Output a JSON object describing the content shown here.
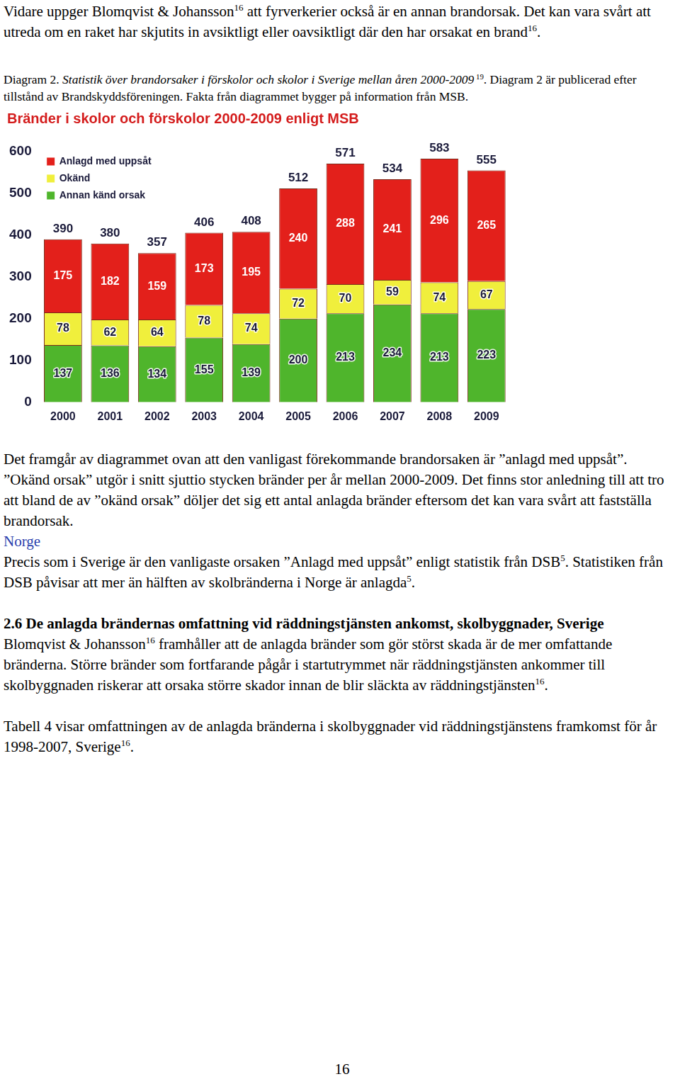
{
  "page": {
    "before": [
      {
        "style": "body",
        "runs": [
          "Vidare uppger Blomqvist & Johansson",
          {
            "text": "16",
            "format": "sup"
          },
          " att fyrverkerier också är en annan brandorsak. Det kan vara svårt att utreda om en raket har skjutits in avsiktligt eller oavsiktligt där den har orsakat en brand",
          {
            "text": "16",
            "format": "sup"
          },
          "."
        ]
      },
      {
        "style": "caption",
        "runs": [
          "Diagram 2. ",
          {
            "text": "Statistik över brandorsaker i förskolor och skolor i Sverige mellan åren 2000-2009",
            "format": "italic"
          },
          {
            "text": " 19",
            "format": "sup"
          },
          ". Diagram 2 är publicerad efter tillstånd av Brandskyddsföreningen. Fakta från diagrammet bygger på information från MSB."
        ]
      }
    ],
    "after": [
      {
        "style": "body",
        "runs": [
          "Det framgår av diagrammet ovan att den vanligast förekommande brandorsaken är ”anlagd med uppsåt”. ”Okänd orsak” utgör i snitt sjuttio stycken bränder per år mellan 2000-2009. Det finns stor anledning till att tro att bland de av ”okänd orsak” döljer det sig ett antal anlagda bränder eftersom det kan vara svårt att fastställa brandorsak."
        ]
      },
      {
        "style": "heading",
        "runs": [
          "Norge"
        ]
      },
      {
        "style": "body",
        "runs": [
          "Precis som i Sverige är den vanligaste orsaken ”Anlagd med uppsåt” enligt statistik från DSB",
          {
            "text": "5",
            "format": "sup"
          },
          ". Statistiken från DSB påvisar att mer än hälften av skolbränderna i Norge är anlagda",
          {
            "text": "5",
            "format": "sup"
          },
          "."
        ]
      },
      {
        "style": "subheading",
        "runs": [
          "2.6 De anlagda brändernas omfattning vid räddningstjänsten ankomst, skolbyggnader, Sverige"
        ]
      },
      {
        "style": "body",
        "runs": [
          "Blomqvist & Johansson",
          {
            "text": "16",
            "format": "sup"
          },
          " framhåller att de anlagda bränder som gör störst skada är de mer omfattande bränderna. Större bränder som fortfarande pågår i startutrymmet när räddningstjänsten ankommer till skolbyggnaden riskerar att orsaka större skador innan de blir släckta av räddningstjänsten",
          {
            "text": "16",
            "format": "sup"
          },
          "."
        ]
      },
      {
        "style": "body",
        "runs": [
          "Tabell 4 visar omfattningen av de anlagda bränderna i skolbyggnader vid räddningstjänstens framkomst för år 1998-2007, Sverige",
          {
            "text": "16",
            "format": "sup"
          },
          "."
        ]
      }
    ],
    "page_number": "16"
  },
  "chart_data": {
    "type": "bar",
    "title": "Bränder i skolor och förskolor 2000-2009 enligt MSB",
    "categories": [
      "2000",
      "2001",
      "2002",
      "2003",
      "2004",
      "2005",
      "2006",
      "2007",
      "2008",
      "2009"
    ],
    "series": [
      {
        "name": "Anlagd med uppsåt",
        "color": "#e3201b",
        "values": [
          175,
          182,
          159,
          173,
          195,
          240,
          288,
          241,
          296,
          265
        ]
      },
      {
        "name": "Okänd",
        "color": "#f0ef3c",
        "values": [
          78,
          62,
          64,
          78,
          74,
          72,
          70,
          59,
          74,
          67
        ]
      },
      {
        "name": "Annan känd orsak",
        "color": "#4fb52c",
        "values": [
          137,
          136,
          134,
          155,
          139,
          200,
          213,
          234,
          213,
          223
        ]
      }
    ],
    "totals": [
      390,
      380,
      357,
      406,
      408,
      512,
      571,
      534,
      583,
      555
    ],
    "ylim": [
      0,
      600
    ],
    "yticks": [
      0,
      100,
      200,
      300,
      400,
      500,
      600
    ],
    "stacked": true,
    "data_labels": true,
    "grid": false,
    "legend": "top-left"
  }
}
